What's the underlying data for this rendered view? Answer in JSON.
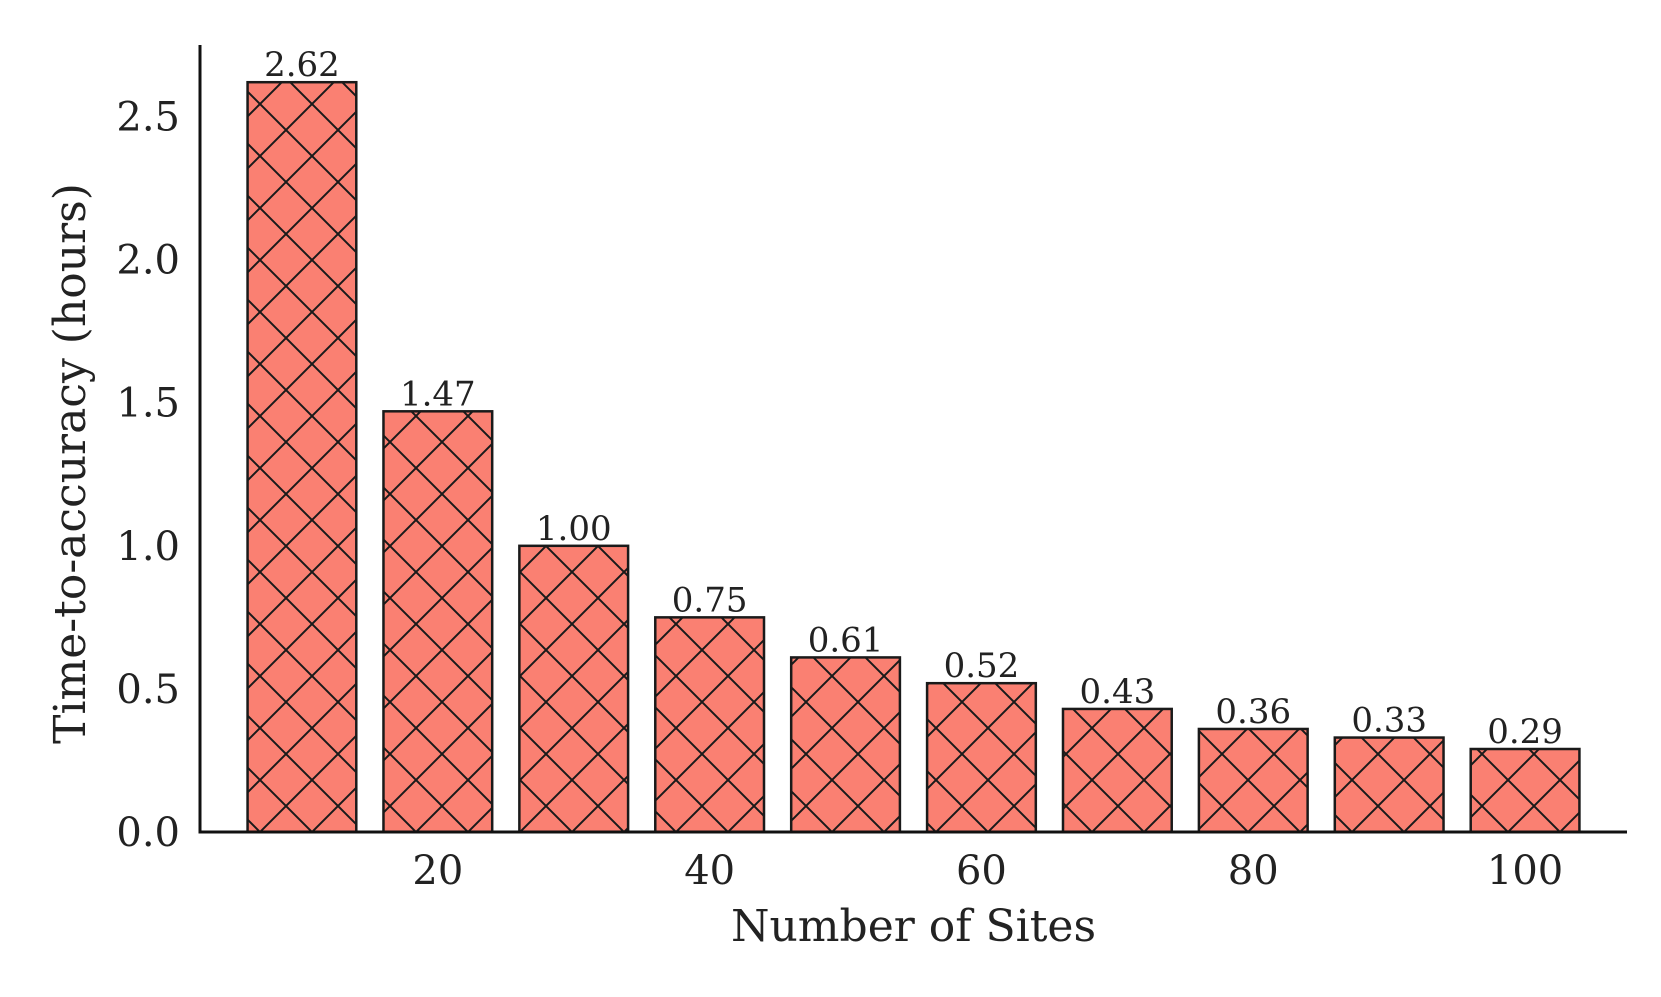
{
  "chart_data": {
    "type": "bar",
    "title": "",
    "xlabel": "Number of Sites",
    "ylabel": "Time-to-accuracy (hours)",
    "x": [
      10,
      20,
      30,
      40,
      50,
      60,
      70,
      80,
      90,
      100
    ],
    "values": [
      2.62,
      1.47,
      1.0,
      0.75,
      0.61,
      0.52,
      0.43,
      0.36,
      0.33,
      0.29
    ],
    "data_labels": [
      "2.62",
      "1.47",
      "1.00",
      "0.75",
      "0.61",
      "0.52",
      "0.43",
      "0.36",
      "0.33",
      "0.29"
    ],
    "xticks": [
      20,
      40,
      60,
      80,
      100
    ],
    "xtick_labels": [
      "20",
      "40",
      "60",
      "80",
      "100"
    ],
    "yticks": [
      0.0,
      0.5,
      1.0,
      1.5,
      2.0,
      2.5
    ],
    "ytick_labels": [
      "0.0",
      "0.5",
      "1.0",
      "1.5",
      "2.0",
      "2.5"
    ],
    "xlim": [
      2.5,
      107.5
    ],
    "ylim": [
      0,
      2.75
    ],
    "grid": false,
    "bar_color": "#fa8072",
    "edge_color": "#1a1a1a",
    "hatch": "crosshatch"
  }
}
